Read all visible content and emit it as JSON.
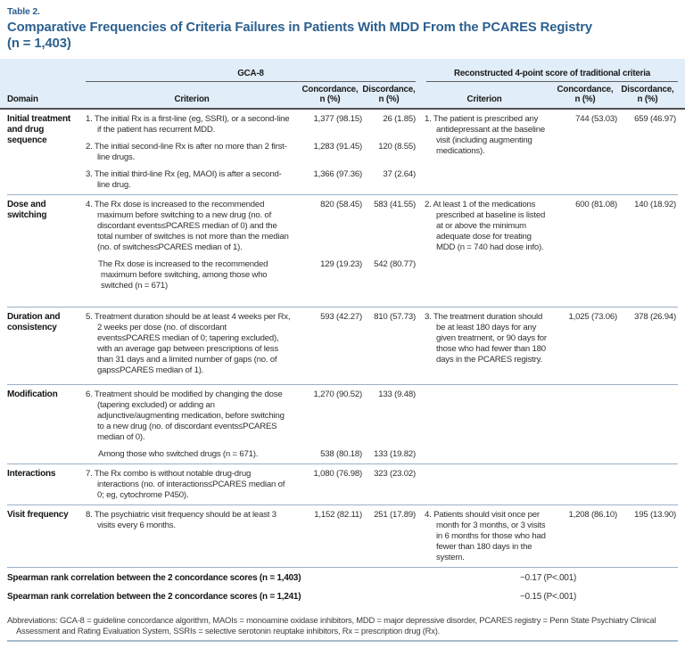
{
  "table_label": "Table 2.",
  "title": "Comparative Frequencies of Criteria Failures in Patients With MDD From the PCARES Registry\n(n = 1,403)",
  "header": {
    "group_left": "GCA-8",
    "group_right": "Reconstructed 4-point score of traditional criteria",
    "col_domain": "Domain",
    "col_criterion": "Criterion",
    "col_concordance": "Concordance,\nn (%)",
    "col_discordance": "Discordance,\nn (%)"
  },
  "sections": [
    {
      "domain": "Initial treatment and drug sequence",
      "gca8_rows": [
        {
          "criterion": "1. The initial Rx is a first-line (eg, SSRI), or a second-line if the patient has recurrent MDD.",
          "concordance": "1,377 (98.15)",
          "discordance": "26 (1.85)"
        },
        {
          "criterion": "2. The initial second-line Rx is after no more than 2 first-line drugs.",
          "concordance": "1,283 (91.45)",
          "discordance": "120 (8.55)"
        },
        {
          "criterion": "3. The initial third-line Rx (eg, MAOI) is after a second-line drug.",
          "concordance": "1,366 (97.36)",
          "discordance": "37 (2.64)"
        }
      ],
      "traditional": {
        "criterion": "1. The patient is prescribed any antidepressant at the baseline visit (including augmenting medications).",
        "concordance": "744 (53.03)",
        "discordance": "659 (46.97)"
      }
    },
    {
      "domain": "Dose and switching",
      "gca8_rows": [
        {
          "criterion": "4. The Rx dose is increased to the recommended maximum before switching to a new drug (no. of discordant events≤PCARES median of 0) and the total number of switches is not more than the median (no. of switches≤PCARES median of 1).",
          "concordance": "820 (58.45)",
          "discordance": "583 (41.55)"
        },
        {
          "criterion": "The Rx dose is increased to the recommended maximum before switching, among those who switched (n = 671)",
          "concordance": "129 (19.23)",
          "discordance": "542 (80.77)",
          "indent": true
        }
      ],
      "traditional": {
        "criterion": "2. At least 1 of the medications prescribed at baseline is listed at or above the minimum adequate dose for treating MDD (n = 740 had dose info).",
        "concordance": "600 (81.08)",
        "discordance": "140 (18.92)"
      }
    },
    {
      "domain": "Duration and consistency",
      "gca8_rows": [
        {
          "criterion": "5. Treatment duration should be at least 4 weeks per Rx, 2 weeks per dose (no. of discordant events≤PCARES median of 0; tapering excluded), with an average gap between prescriptions of less than 31 days and a limited number of gaps (no. of gaps≤PCARES median of 1).",
          "concordance": "593 (42.27)",
          "discordance": "810 (57.73)"
        }
      ],
      "traditional": {
        "criterion": "3. The treatment duration should be at least 180 days for any given treatment, or 90 days for those who had fewer than 180 days in the PCARES registry.",
        "concordance": "1,025 (73.06)",
        "discordance": "378 (26.94)"
      }
    },
    {
      "domain": "Modification",
      "gca8_rows": [
        {
          "criterion": "6. Treatment should be modified by changing the dose (tapering excluded) or adding an adjunctive/augmenting medication, before switching to a new drug (no. of discordant events≤PCARES median of 0).",
          "concordance": "1,270 (90.52)",
          "discordance": "133 (9.48)"
        },
        {
          "criterion": "Among those who switched drugs (n = 671).",
          "concordance": "538 (80.18)",
          "discordance": "133 (19.82)",
          "indent": true
        }
      ],
      "traditional": null
    },
    {
      "domain": "Interactions",
      "gca8_rows": [
        {
          "criterion": "7. The Rx combo is without notable drug-drug interactions (no. of interactions≤PCARES median of 0; eg, cytochrome P450).",
          "concordance": "1,080 (76.98)",
          "discordance": "323 (23.02)"
        }
      ],
      "traditional": null
    },
    {
      "domain": "Visit frequency",
      "gca8_rows": [
        {
          "criterion": "8. The psychiatric visit frequency should be at least 3 visits every 6 months.",
          "concordance": "1,152 (82.11)",
          "discordance": "251 (17.89)"
        }
      ],
      "traditional": {
        "criterion": "4. Patients should visit once per month for 3 months, or 3 visits in 6 months for those who had fewer than 180 days in the system.",
        "concordance": "1,208 (86.10)",
        "discordance": "195 (13.90)"
      }
    }
  ],
  "spearman": [
    {
      "label": "Spearman rank correlation between the 2 concordance scores (n = 1,403)",
      "value": "−0.17 (P<.001)"
    },
    {
      "label": "Spearman rank correlation between the 2 concordance scores (n = 1,241)",
      "value": "−0.15 (P<.001)"
    }
  ],
  "footnote": "Abbreviations: GCA-8 = guideline concordance algorithm, MAOIs = monoamine oxidase inhibitors, MDD = major depressive disorder, PCARES registry = Penn State Psychiatry Clinical Assessment and Rating Evaluation System, SSRIs = selective serotonin reuptake inhibitors, Rx = prescription drug (Rx)."
}
